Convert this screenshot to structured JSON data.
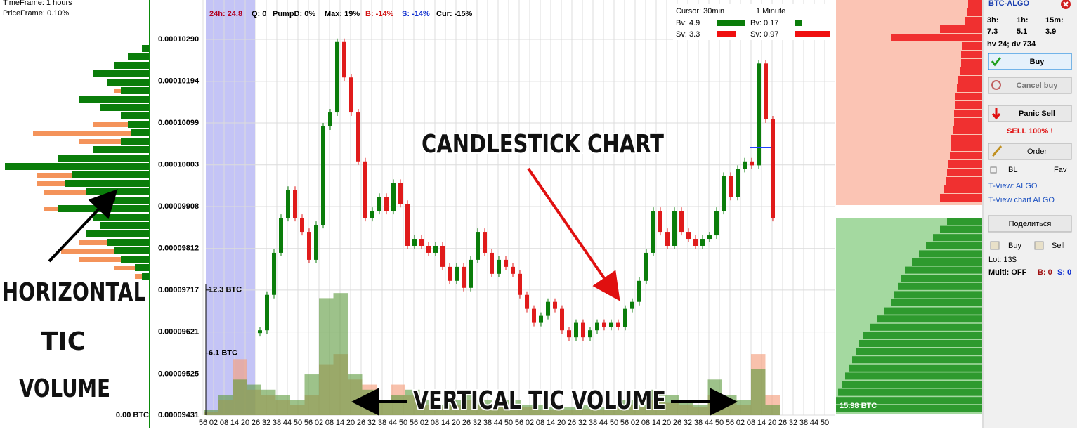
{
  "left_panel": {
    "timeframe": "TimeFrame: 1 hours",
    "priceframe": "PriceFrame: 0.10%",
    "horizontal_volume": {
      "buy": [
        10,
        30,
        50,
        80,
        60,
        40,
        100,
        70,
        40,
        30,
        25,
        40,
        80,
        130,
        205,
        110,
        120,
        90,
        70,
        130,
        80,
        70,
        90,
        60,
        50,
        40,
        20,
        10
      ],
      "sell": [
        0,
        0,
        0,
        0,
        0,
        10,
        0,
        0,
        0,
        50,
        140,
        60,
        0,
        0,
        0,
        50,
        40,
        60,
        0,
        20,
        0,
        0,
        0,
        40,
        75,
        60,
        30,
        10
      ]
    },
    "volume_label": "0.00 BTC",
    "annotation": [
      "HORIZONTAL",
      "TIC",
      "VOLUME"
    ]
  },
  "chart": {
    "stats": [
      {
        "text": "24h: 24.8",
        "color": "#b00020"
      },
      {
        "text": "Q: 0",
        "color": "#000000"
      },
      {
        "text": "PumpD: 0%",
        "color": "#000000"
      },
      {
        "text": "Max: 19%",
        "color": "#000000"
      },
      {
        "text": "B: -14%",
        "color": "#d01010"
      },
      {
        "text": "S: -14%",
        "color": "#1030d0"
      },
      {
        "text": "Cur: -15%",
        "color": "#000000"
      }
    ],
    "cursor_box": {
      "cursor": "Cursor: 30min",
      "interval": "1 Minute",
      "bv_left": "Bv: 4.9",
      "bv_right": "Bv: 0.17",
      "sv_left": "Sv: 3.3",
      "sv_right": "Sv: 0.97"
    },
    "ylim": [
      9.431e-05,
      0.0001038
    ],
    "yticks": [
      {
        "value": 9.431e-05,
        "label": "0.00009431"
      },
      {
        "value": 9.525e-05,
        "label": "0.00009525"
      },
      {
        "value": 9.621e-05,
        "label": "0.00009621"
      },
      {
        "value": 9.717e-05,
        "label": "0.00009717"
      },
      {
        "value": 9.812e-05,
        "label": "0.00009812"
      },
      {
        "value": 9.908e-05,
        "label": "0.00009908"
      },
      {
        "value": 0.00010003,
        "label": "0.00010003"
      },
      {
        "value": 0.00010099,
        "label": "0.00010099"
      },
      {
        "value": 0.00010194,
        "label": "0.00010194"
      },
      {
        "value": 0.0001029,
        "label": "0.00010290"
      }
    ],
    "x_labels": [
      "56",
      "02",
      "08",
      "14",
      "20",
      "26",
      "32",
      "38",
      "44",
      "50",
      "56",
      "02",
      "08",
      "14",
      "20",
      "26",
      "32",
      "38",
      "44",
      "50",
      "56",
      "02",
      "08",
      "14",
      "20",
      "26",
      "32",
      "38",
      "44",
      "50",
      "56",
      "02",
      "08",
      "14",
      "20",
      "26",
      "32",
      "38",
      "44",
      "50",
      "56",
      "02",
      "08",
      "14",
      "20",
      "26",
      "32",
      "38",
      "44",
      "50",
      "56",
      "02",
      "08",
      "14",
      "20",
      "26",
      "32",
      "38",
      "44",
      "50"
    ],
    "price": [
      9.625e-05,
      9.706e-05,
      9.802e-05,
      9.882e-05,
      9.946e-05,
      9.882e-05,
      9.85e-05,
      9.786e-05,
      9.866e-05,
      0.00010091,
      0.00010123,
      0.00010284,
      0.00010203,
      0.00010123,
      0.00010011,
      9.882e-05,
      9.898e-05,
      9.93e-05,
      9.898e-05,
      9.962e-05,
      9.914e-05,
      9.818e-05,
      9.834e-05,
      9.818e-05,
      9.802e-05,
      9.818e-05,
      9.77e-05,
      9.738e-05,
      9.77e-05,
      9.722e-05,
      9.786e-05,
      9.85e-05,
      9.802e-05,
      9.754e-05,
      9.786e-05,
      9.77e-05,
      9.754e-05,
      9.706e-05,
      9.674e-05,
      9.642e-05,
      9.658e-05,
      9.69e-05,
      9.674e-05,
      9.625e-05,
      9.609e-05,
      9.642e-05,
      9.609e-05,
      9.625e-05,
      9.642e-05,
      9.633e-05,
      9.642e-05,
      9.633e-05,
      9.674e-05,
      9.69e-05,
      9.738e-05,
      9.802e-05,
      9.898e-05,
      9.85e-05,
      9.818e-05,
      9.898e-05,
      9.85e-05,
      9.834e-05,
      9.818e-05,
      9.834e-05,
      9.842e-05,
      9.898e-05,
      9.978e-05,
      9.93e-05,
      9.994e-05,
      0.00010011,
      0.00010002,
      0.00010235,
      0.00010107,
      9.882e-05
    ],
    "volume": {
      "ylim": [
        0,
        40.8
      ],
      "yticks": [
        {
          "value": 6.1,
          "label": "6.1 BTC"
        },
        {
          "value": 12.3,
          "label": "12.3 BTC"
        }
      ],
      "buy": [
        0.5,
        2.0,
        3.5,
        3.0,
        2.5,
        2.0,
        1.5,
        4.0,
        11.5,
        12.0,
        4.0,
        2.5,
        1.5,
        2.0,
        2.5,
        1.5,
        1.0,
        1.5,
        2.0,
        1.5,
        1.0,
        1.5,
        1.0,
        1.0,
        0.8,
        0.8,
        1.0,
        0.8,
        1.0,
        1.5,
        1.0,
        2.5,
        2.0,
        1.5,
        1.0,
        3.5,
        2.0,
        1.5,
        4.5,
        1.0
      ],
      "sell": [
        0.3,
        1.5,
        5.5,
        2.5,
        2.0,
        1.5,
        1.0,
        2.0,
        5.0,
        6.0,
        3.5,
        3.0,
        1.5,
        3.0,
        2.0,
        1.0,
        0.8,
        1.0,
        1.5,
        1.0,
        0.8,
        1.0,
        0.8,
        0.5,
        0.5,
        0.5,
        0.6,
        0.5,
        0.8,
        1.0,
        0.8,
        1.5,
        1.2,
        1.0,
        0.8,
        2.0,
        1.5,
        1.0,
        6.0,
        2.0
      ]
    },
    "annotations": {
      "candlestick": "CANDLESTICK CHART",
      "volume": "VERTICAL TIC VOLUME"
    }
  },
  "order_book": {
    "asks": [
      20,
      22,
      25,
      60,
      130,
      28,
      30,
      30,
      32,
      35,
      36,
      38,
      38,
      40,
      40,
      42,
      44,
      45,
      46,
      48,
      50,
      52,
      55,
      60
    ],
    "bids": [
      50,
      60,
      70,
      80,
      90,
      100,
      110,
      115,
      120,
      125,
      130,
      140,
      150,
      160,
      170,
      175,
      180,
      185,
      190,
      195,
      200,
      205,
      208,
      208
    ],
    "label": "15.98 BTC"
  },
  "side_panel": {
    "pair": "BTC-ALGO",
    "periods": [
      "3h:",
      "1h:",
      "15m:"
    ],
    "period_values": [
      7.3,
      5.1,
      3.9
    ],
    "hv_dv": "hv 24; dv 734",
    "buy": "Buy",
    "cancel_buy": "Cancel buy",
    "panic_sell": "Panic Sell",
    "sell_all": "SELL 100% !",
    "order": "Order",
    "bl": "BL",
    "fav": "Fav",
    "tview": "T-View: ALGO",
    "tview_chart": "T-View chart ALGO",
    "share": "Поделиться",
    "buy2": "Buy",
    "sell2": "Sell",
    "lot": "Lot: 13$",
    "multi": "Multi: OFF",
    "b": "B: 0",
    "s": "S: 0"
  }
}
